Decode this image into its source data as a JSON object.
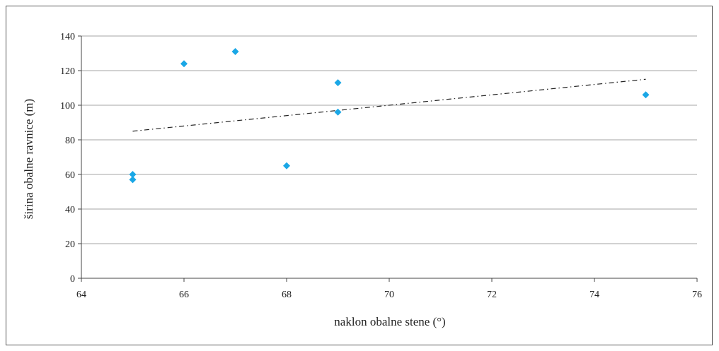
{
  "chart_data": {
    "type": "scatter",
    "title": "",
    "xlabel": "naklon obalne stene (°)",
    "ylabel": "širina obalne ravnice (m)",
    "xlim": [
      64,
      76
    ],
    "ylim": [
      0,
      140
    ],
    "x_ticks": [
      "64",
      "66",
      "68",
      "70",
      "72",
      "74",
      "76"
    ],
    "y_ticks": [
      "0",
      "20",
      "40",
      "60",
      "80",
      "100",
      "120",
      "140"
    ],
    "grid": "horizontal",
    "legend": "none",
    "series": [
      {
        "marker": "diamond",
        "color": "#1aa7e6",
        "points": [
          {
            "x": 65,
            "y": 60
          },
          {
            "x": 65,
            "y": 57
          },
          {
            "x": 66,
            "y": 124
          },
          {
            "x": 67,
            "y": 131
          },
          {
            "x": 68,
            "y": 65
          },
          {
            "x": 69,
            "y": 113
          },
          {
            "x": 69,
            "y": 96
          },
          {
            "x": 75,
            "y": 106
          }
        ]
      }
    ],
    "trendline": {
      "type": "linear",
      "style": "dash-dot",
      "color": "#222222",
      "from": {
        "x": 65,
        "y": 85
      },
      "to": {
        "x": 75,
        "y": 115
      }
    }
  }
}
